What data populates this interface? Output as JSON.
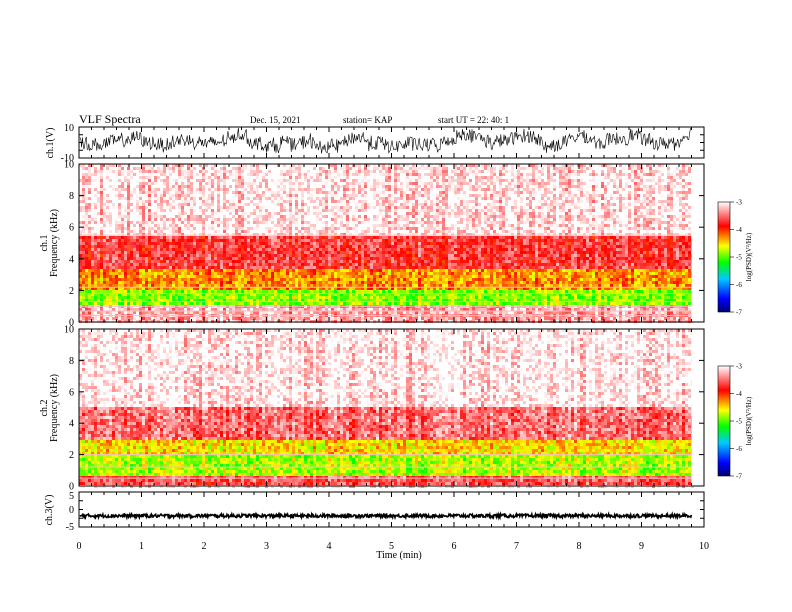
{
  "header": {
    "title": "VLF  Spectra",
    "date": "Dec. 15, 2021",
    "station": "station= KAP",
    "start": "start  UT  =   22: 40: 1"
  },
  "chart_data": {
    "type": "heatmap",
    "x_axis": {
      "label": "Time  (min)",
      "range": [
        0,
        10
      ],
      "ticks": [
        "0",
        "1",
        "2",
        "3",
        "4",
        "5",
        "6",
        "7",
        "8",
        "9",
        "10"
      ],
      "data_end": 9.8
    },
    "panels": [
      {
        "id": "ch1-waveform",
        "type": "line",
        "ylabel": "ch.1(V)",
        "ylim": [
          -10,
          10
        ],
        "yticks": [
          "10",
          "-10"
        ],
        "trace_color": "#000000"
      },
      {
        "id": "ch1-spectrogram",
        "type": "heatmap",
        "ylabel": "ch.1\nFrequency  (kHz)",
        "ylim": [
          0,
          10
        ],
        "yticks": [
          "0",
          "2",
          "4",
          "6",
          "8",
          "10"
        ],
        "bands": [
          {
            "from": 0,
            "to": 1.0,
            "level": -3.3
          },
          {
            "from": 1.0,
            "to": 2.1,
            "level": -4.9
          },
          {
            "from": 2.1,
            "to": 3.4,
            "level": -4.3
          },
          {
            "from": 3.4,
            "to": 5.5,
            "level": -3.7
          },
          {
            "from": 5.5,
            "to": 10,
            "level": -3.1
          }
        ],
        "line_freqs": [
          0.4,
          0.7,
          1.0,
          1.3,
          1.8,
          2.2,
          5.5
        ]
      },
      {
        "id": "ch2-spectrogram",
        "type": "heatmap",
        "ylabel": "ch.2\nFrequency  (kHz)",
        "ylim": [
          0,
          10
        ],
        "yticks": [
          "0",
          "2",
          "4",
          "6",
          "8",
          "10"
        ],
        "bands": [
          {
            "from": 0,
            "to": 0.6,
            "level": -3.6
          },
          {
            "from": 0.6,
            "to": 2.0,
            "level": -4.8
          },
          {
            "from": 2.0,
            "to": 3.0,
            "level": -4.5
          },
          {
            "from": 3.0,
            "to": 5.0,
            "level": -3.5
          },
          {
            "from": 5.0,
            "to": 10,
            "level": -3.05
          }
        ],
        "line_freqs": [
          0.5,
          1.2,
          2.0
        ]
      },
      {
        "id": "ch3-waveform",
        "type": "line",
        "ylabel": "ch.3(V)",
        "ylim": [
          -5,
          5
        ],
        "yticks": [
          "5",
          "0",
          "-5"
        ],
        "baseline": -1.8,
        "amplitude": 0.5,
        "trace_color": "#000000"
      }
    ],
    "colorbar": {
      "label": "log(PSD)(V²/Hz)",
      "range": [
        -7,
        -3
      ],
      "ticks": [
        "-3",
        "-4",
        "-5",
        "-6",
        "-7"
      ],
      "colors": [
        "#000080",
        "#0000ff",
        "#00c8ff",
        "#00ff00",
        "#ffff00",
        "#ff0000",
        "#ffffff"
      ]
    }
  }
}
